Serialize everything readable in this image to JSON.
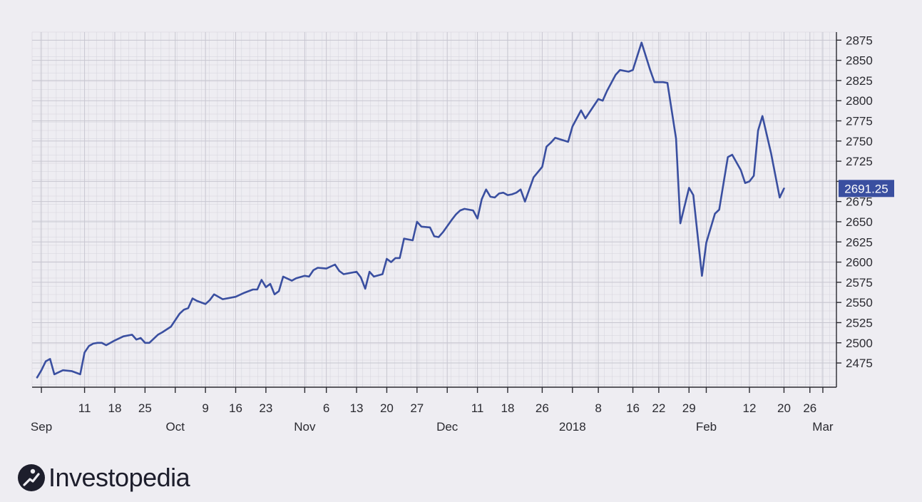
{
  "logo": {
    "text": "Investopedia"
  },
  "colors": {
    "line": "#3a4fa0",
    "background": "#eeedf2",
    "grid": "#d4d3dc",
    "badge": "#3a4fa0",
    "axis": "#2a2a30"
  },
  "chart_data": {
    "type": "line",
    "title": "",
    "xlabel": "",
    "ylabel": "",
    "grid": true,
    "y_axis_side": "right",
    "ylim": [
      2445,
      2885
    ],
    "yticks": [
      2475,
      2500,
      2525,
      2550,
      2575,
      2600,
      2625,
      2650,
      2675,
      2700,
      2725,
      2750,
      2775,
      2800,
      2825,
      2850,
      2875
    ],
    "ytick_labels": [
      "2475",
      "2500",
      "2525",
      "2550",
      "2575",
      "2600",
      "2625",
      "2650",
      "2675",
      "",
      "2725",
      "2750",
      "2775",
      "2800",
      "2825",
      "2850",
      "2875"
    ],
    "last_value_label": "2691.25",
    "last_value": 2691.25,
    "xlim": [
      "2017-08-31",
      "2018-03-02"
    ],
    "xticks": [
      {
        "date": "2017-09-01",
        "label": "",
        "month": "Sep"
      },
      {
        "date": "2017-09-11",
        "label": "11",
        "month": ""
      },
      {
        "date": "2017-09-18",
        "label": "18",
        "month": ""
      },
      {
        "date": "2017-09-25",
        "label": "25",
        "month": ""
      },
      {
        "date": "2017-10-02",
        "label": "",
        "month": "Oct"
      },
      {
        "date": "2017-10-09",
        "label": "9",
        "month": ""
      },
      {
        "date": "2017-10-16",
        "label": "16",
        "month": ""
      },
      {
        "date": "2017-10-23",
        "label": "23",
        "month": ""
      },
      {
        "date": "2017-11-01",
        "label": "",
        "month": "Nov"
      },
      {
        "date": "2017-11-06",
        "label": "6",
        "month": ""
      },
      {
        "date": "2017-11-13",
        "label": "13",
        "month": ""
      },
      {
        "date": "2017-11-20",
        "label": "20",
        "month": ""
      },
      {
        "date": "2017-11-27",
        "label": "27",
        "month": ""
      },
      {
        "date": "2017-12-04",
        "label": "",
        "month": "Dec"
      },
      {
        "date": "2017-12-11",
        "label": "11",
        "month": ""
      },
      {
        "date": "2017-12-18",
        "label": "18",
        "month": ""
      },
      {
        "date": "2017-12-26",
        "label": "26",
        "month": ""
      },
      {
        "date": "2018-01-02",
        "label": "",
        "month": "2018"
      },
      {
        "date": "2018-01-08",
        "label": "8",
        "month": ""
      },
      {
        "date": "2018-01-16",
        "label": "16",
        "month": ""
      },
      {
        "date": "2018-01-22",
        "label": "22",
        "month": ""
      },
      {
        "date": "2018-01-29",
        "label": "29",
        "month": ""
      },
      {
        "date": "2018-02-02",
        "label": "",
        "month": "Feb"
      },
      {
        "date": "2018-02-12",
        "label": "12",
        "month": ""
      },
      {
        "date": "2018-02-20",
        "label": "20",
        "month": ""
      },
      {
        "date": "2018-02-26",
        "label": "26",
        "month": ""
      },
      {
        "date": "2018-03-01",
        "label": "",
        "month": "Mar"
      }
    ],
    "series": [
      {
        "points": [
          [
            "2017-08-31",
            2457
          ],
          [
            "2017-09-01",
            2466
          ],
          [
            "2017-09-02",
            2477
          ],
          [
            "2017-09-03",
            2480
          ],
          [
            "2017-09-04",
            2461
          ],
          [
            "2017-09-06",
            2466
          ],
          [
            "2017-09-08",
            2465
          ],
          [
            "2017-09-10",
            2461
          ],
          [
            "2017-09-11",
            2488
          ],
          [
            "2017-09-12",
            2496
          ],
          [
            "2017-09-13",
            2499
          ],
          [
            "2017-09-14",
            2500
          ],
          [
            "2017-09-15",
            2500
          ],
          [
            "2017-09-16",
            2497
          ],
          [
            "2017-09-18",
            2503
          ],
          [
            "2017-09-20",
            2508
          ],
          [
            "2017-09-22",
            2510
          ],
          [
            "2017-09-23",
            2504
          ],
          [
            "2017-09-24",
            2506
          ],
          [
            "2017-09-25",
            2500
          ],
          [
            "2017-09-26",
            2500
          ],
          [
            "2017-09-28",
            2510
          ],
          [
            "2017-09-29",
            2513
          ],
          [
            "2017-10-01",
            2520
          ],
          [
            "2017-10-02",
            2528
          ],
          [
            "2017-10-03",
            2536
          ],
          [
            "2017-10-04",
            2541
          ],
          [
            "2017-10-05",
            2543
          ],
          [
            "2017-10-06",
            2555
          ],
          [
            "2017-10-07",
            2552
          ],
          [
            "2017-10-09",
            2548
          ],
          [
            "2017-10-10",
            2553
          ],
          [
            "2017-10-11",
            2560
          ],
          [
            "2017-10-13",
            2554
          ],
          [
            "2017-10-16",
            2557
          ],
          [
            "2017-10-18",
            2562
          ],
          [
            "2017-10-20",
            2566
          ],
          [
            "2017-10-21",
            2566
          ],
          [
            "2017-10-22",
            2578
          ],
          [
            "2017-10-23",
            2569
          ],
          [
            "2017-10-24",
            2573
          ],
          [
            "2017-10-25",
            2560
          ],
          [
            "2017-10-26",
            2564
          ],
          [
            "2017-10-27",
            2582
          ],
          [
            "2017-10-29",
            2577
          ],
          [
            "2017-10-30",
            2580
          ],
          [
            "2017-11-01",
            2583
          ],
          [
            "2017-11-02",
            2582
          ],
          [
            "2017-11-03",
            2590
          ],
          [
            "2017-11-04",
            2593
          ],
          [
            "2017-11-06",
            2592
          ],
          [
            "2017-11-08",
            2597
          ],
          [
            "2017-11-09",
            2589
          ],
          [
            "2017-11-10",
            2585
          ],
          [
            "2017-11-13",
            2588
          ],
          [
            "2017-11-14",
            2581
          ],
          [
            "2017-11-15",
            2567
          ],
          [
            "2017-11-16",
            2588
          ],
          [
            "2017-11-17",
            2582
          ],
          [
            "2017-11-19",
            2585
          ],
          [
            "2017-11-20",
            2604
          ],
          [
            "2017-11-21",
            2600
          ],
          [
            "2017-11-22",
            2605
          ],
          [
            "2017-11-23",
            2605
          ],
          [
            "2017-11-24",
            2629
          ],
          [
            "2017-11-26",
            2627
          ],
          [
            "2017-11-27",
            2650
          ],
          [
            "2017-11-28",
            2644
          ],
          [
            "2017-11-30",
            2643
          ],
          [
            "2017-12-01",
            2632
          ],
          [
            "2017-12-02",
            2631
          ],
          [
            "2017-12-03",
            2637
          ],
          [
            "2017-12-05",
            2652
          ],
          [
            "2017-12-06",
            2659
          ],
          [
            "2017-12-07",
            2664
          ],
          [
            "2017-12-08",
            2666
          ],
          [
            "2017-12-10",
            2664
          ],
          [
            "2017-12-11",
            2654
          ],
          [
            "2017-12-12",
            2678
          ],
          [
            "2017-12-13",
            2690
          ],
          [
            "2017-12-14",
            2681
          ],
          [
            "2017-12-15",
            2680
          ],
          [
            "2017-12-16",
            2685
          ],
          [
            "2017-12-17",
            2686
          ],
          [
            "2017-12-18",
            2683
          ],
          [
            "2017-12-19",
            2684
          ],
          [
            "2017-12-20",
            2686
          ],
          [
            "2017-12-21",
            2690
          ],
          [
            "2017-12-22",
            2675
          ],
          [
            "2017-12-24",
            2705
          ],
          [
            "2017-12-26",
            2718
          ],
          [
            "2017-12-27",
            2743
          ],
          [
            "2017-12-28",
            2748
          ],
          [
            "2017-12-29",
            2754
          ],
          [
            "2018-01-01",
            2749
          ],
          [
            "2018-01-02",
            2768
          ],
          [
            "2018-01-04",
            2788
          ],
          [
            "2018-01-05",
            2778
          ],
          [
            "2018-01-08",
            2802
          ],
          [
            "2018-01-09",
            2800
          ],
          [
            "2018-01-10",
            2812
          ],
          [
            "2018-01-12",
            2832
          ],
          [
            "2018-01-13",
            2838
          ],
          [
            "2018-01-15",
            2836
          ],
          [
            "2018-01-16",
            2838
          ],
          [
            "2018-01-18",
            2872
          ],
          [
            "2018-01-20",
            2838
          ],
          [
            "2018-01-21",
            2823
          ],
          [
            "2018-01-23",
            2823
          ],
          [
            "2018-01-24",
            2822
          ],
          [
            "2018-01-26",
            2753
          ],
          [
            "2018-01-27",
            2648
          ],
          [
            "2018-01-29",
            2692
          ],
          [
            "2018-01-30",
            2683
          ],
          [
            "2018-02-01",
            2583
          ],
          [
            "2018-02-02",
            2624
          ],
          [
            "2018-02-04",
            2660
          ],
          [
            "2018-02-05",
            2665
          ],
          [
            "2018-02-06",
            2698
          ],
          [
            "2018-02-07",
            2730
          ],
          [
            "2018-02-08",
            2733
          ],
          [
            "2018-02-10",
            2714
          ],
          [
            "2018-02-11",
            2698
          ],
          [
            "2018-02-12",
            2700
          ],
          [
            "2018-02-13",
            2707
          ],
          [
            "2018-02-14",
            2763
          ],
          [
            "2018-02-15",
            2781
          ],
          [
            "2018-02-17",
            2735
          ],
          [
            "2018-02-19",
            2680
          ],
          [
            "2018-02-20",
            2691.25
          ]
        ]
      }
    ]
  }
}
